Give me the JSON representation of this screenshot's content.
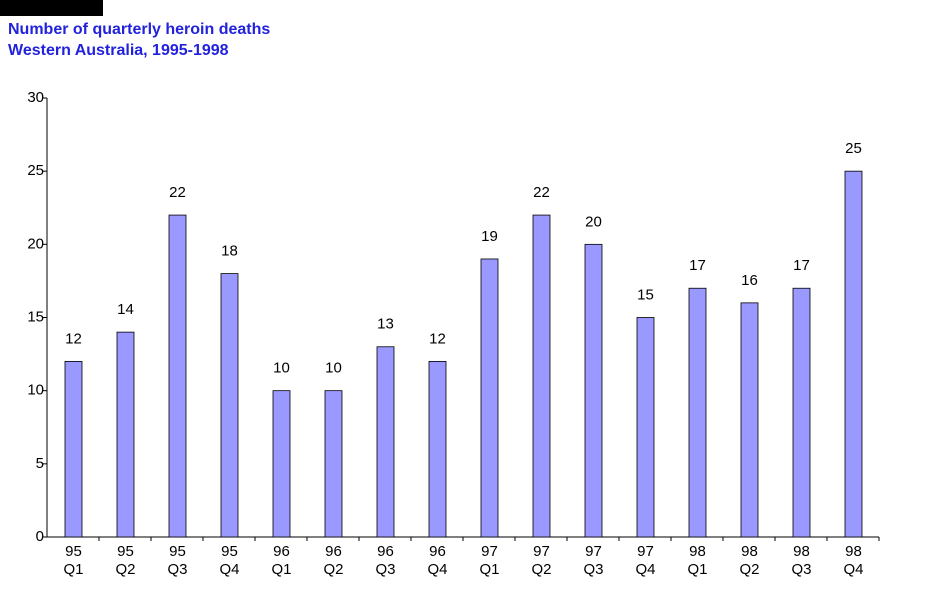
{
  "chart_data": {
    "type": "bar",
    "title": "Number of quarterly heroin deaths",
    "subtitle": "Western Australia, 1995-1998",
    "categories": [
      [
        "95",
        "Q1"
      ],
      [
        "95",
        "Q2"
      ],
      [
        "95",
        "Q3"
      ],
      [
        "95",
        "Q4"
      ],
      [
        "96",
        "Q1"
      ],
      [
        "96",
        "Q2"
      ],
      [
        "96",
        "Q3"
      ],
      [
        "96",
        "Q4"
      ],
      [
        "97",
        "Q1"
      ],
      [
        "97",
        "Q2"
      ],
      [
        "97",
        "Q3"
      ],
      [
        "97",
        "Q4"
      ],
      [
        "98",
        "Q1"
      ],
      [
        "98",
        "Q2"
      ],
      [
        "98",
        "Q3"
      ],
      [
        "98",
        "Q4"
      ]
    ],
    "values": [
      12,
      14,
      22,
      18,
      10,
      10,
      13,
      12,
      19,
      22,
      20,
      15,
      17,
      16,
      17,
      25
    ],
    "color": "#9999ff",
    "ylim": [
      0,
      30
    ],
    "yticks": [
      0,
      5,
      10,
      15,
      20,
      25,
      30
    ]
  }
}
